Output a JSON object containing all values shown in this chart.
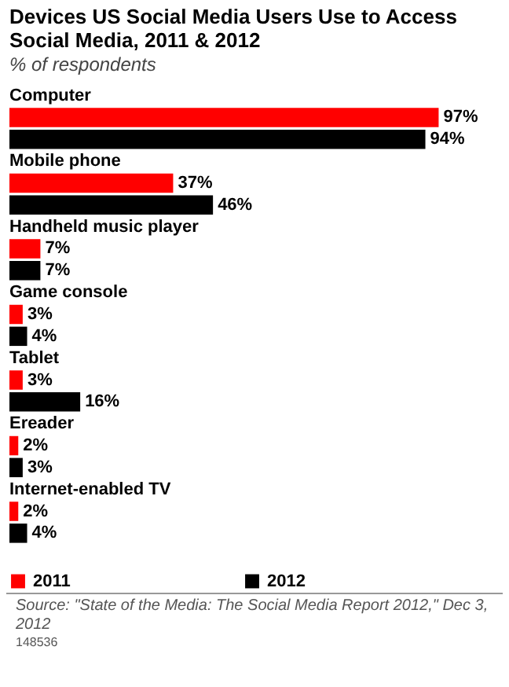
{
  "chart_data": {
    "type": "bar",
    "orientation": "horizontal",
    "title": "Devices US Social Media Users Use to Access Social Media, 2011 & 2012",
    "subtitle": "% of respondents",
    "categories": [
      "Computer",
      "Mobile phone",
      "Handheld music player",
      "Game console",
      "Tablet",
      "Ereader",
      "Internet-enabled TV"
    ],
    "series": [
      {
        "name": "2011",
        "color": "#ff0000",
        "values": [
          97,
          37,
          7,
          3,
          3,
          2,
          2
        ],
        "value_labels": [
          "97%",
          "37%",
          "7%",
          "3%",
          "3%",
          "2%",
          "2%"
        ]
      },
      {
        "name": "2012",
        "color": "#000000",
        "values": [
          94,
          46,
          7,
          4,
          16,
          3,
          4
        ],
        "value_labels": [
          "94%",
          "46%",
          "7%",
          "4%",
          "16%",
          "3%",
          "4%"
        ]
      }
    ],
    "legend": "bottom",
    "annotations": [
      "Source: \"State of the Media: The Social Media Report 2012,\" Dec 3, 2012",
      "148536"
    ]
  }
}
